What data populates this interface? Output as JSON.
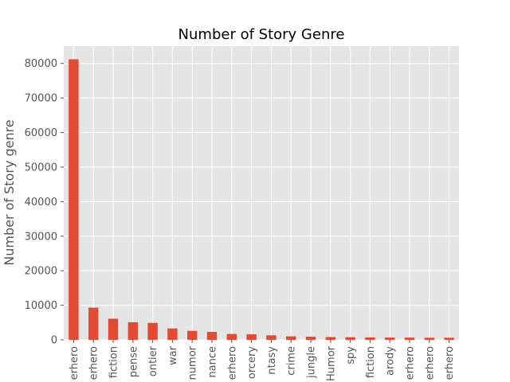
{
  "chart_data": {
    "type": "bar",
    "title": "Number of Story Genre",
    "xlabel": "",
    "ylabel": "Number of Story genre",
    "ylim": [
      0,
      85000
    ],
    "yticks": [
      0,
      10000,
      20000,
      30000,
      40000,
      50000,
      60000,
      70000,
      80000
    ],
    "grid": true,
    "bar_color": "#E24A33",
    "background_color": "#E5E5E5",
    "categories": [
      "erhero",
      "erhero",
      "fiction",
      "pense",
      "ontier",
      "war",
      "numor",
      "nance",
      "erhero",
      "orcery",
      "ntasy",
      "crime",
      "jungle",
      "Humor",
      "spy",
      "fiction",
      "arody",
      "erhero",
      "erhero",
      "erhero"
    ],
    "values": [
      81200,
      9300,
      6100,
      5100,
      4900,
      3300,
      2600,
      2300,
      1700,
      1600,
      1300,
      1000,
      900,
      800,
      750,
      700,
      650,
      650,
      600,
      600
    ]
  }
}
